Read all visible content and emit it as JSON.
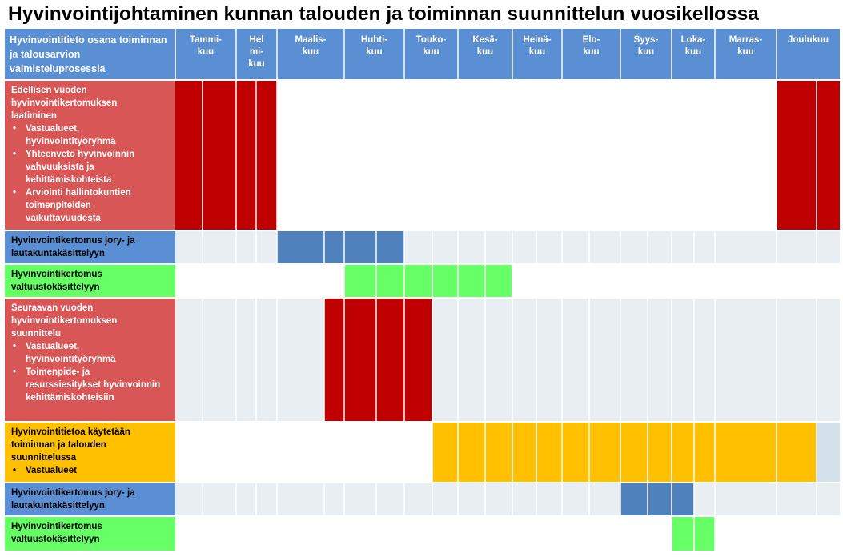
{
  "title": "Hyvinvointijohtaminen kunnan talouden ja toiminnan suunnittelun vuosikellossa",
  "header": {
    "label": "Hyvinvointitieto osana toiminnan ja talousarvion valmisteluprosessia",
    "months": [
      "Tammi-\nkuu",
      "Hel\nmi-\nkuu",
      "Maalis-\nkuu",
      "Huhti-\nkuu",
      "Touko-\nkuu",
      "Kesä-\nkuu",
      "Heinä-\nkuu",
      "Elo-\nkuu",
      "Syys-\nkuu",
      "Loka-\nkuu",
      "Marras-\nkuu",
      "Joulukuu"
    ]
  },
  "colors": {
    "header": "#5b8fd4",
    "red_label": "#d95656",
    "red_bar": "#c00000",
    "blue_label": "#5b8fd4",
    "blue_bar": "#4f81bd",
    "green": "#66ff66",
    "orange": "#ffc000",
    "cell_light": "#e9eef3",
    "cell_white": "#ffffff",
    "cell_pale_blue": "#d2e1ea",
    "line": "#ffffff"
  },
  "rows": [
    {
      "title": "Edellisen vuoden hyvinvointikertomuksen laatiminen",
      "bullets": [
        "Vastualueet, hyvinvointityöryhmä",
        "Yhteenveto hyvinvoinnin vahvuuksista ja kehittämiskohteista",
        "Arviointi hallintokuntien toimenpiteiden vaikuttavuudesta"
      ]
    },
    {
      "title": "Hyvinvointikertomus jory- ja lautakuntakäsittelyyn",
      "bullets": []
    },
    {
      "title": "Hyvinvointikertomus valtuustokäsittelyyn",
      "bullets": []
    },
    {
      "title": "Seuraavan vuoden hyvinvointikertomuksen suunnittelu",
      "bullets": [
        "Vastualueet, hyvinvointityöryhmä",
        "Toimenpide- ja resurssiesitykset hyvinvoinnin kehittämiskohteisiin"
      ]
    },
    {
      "title": "Hyvinvointitietoa käytetään toiminnan ja talouden suunnittelussa",
      "bullets": [
        "Vastualueet"
      ]
    },
    {
      "title": "Hyvinvointikertomus jory- ja lautakuntakäsittelyyn",
      "bullets": []
    },
    {
      "title": "Hyvinvointikertomus valtuustokäsittelyyn",
      "bullets": []
    }
  ]
}
